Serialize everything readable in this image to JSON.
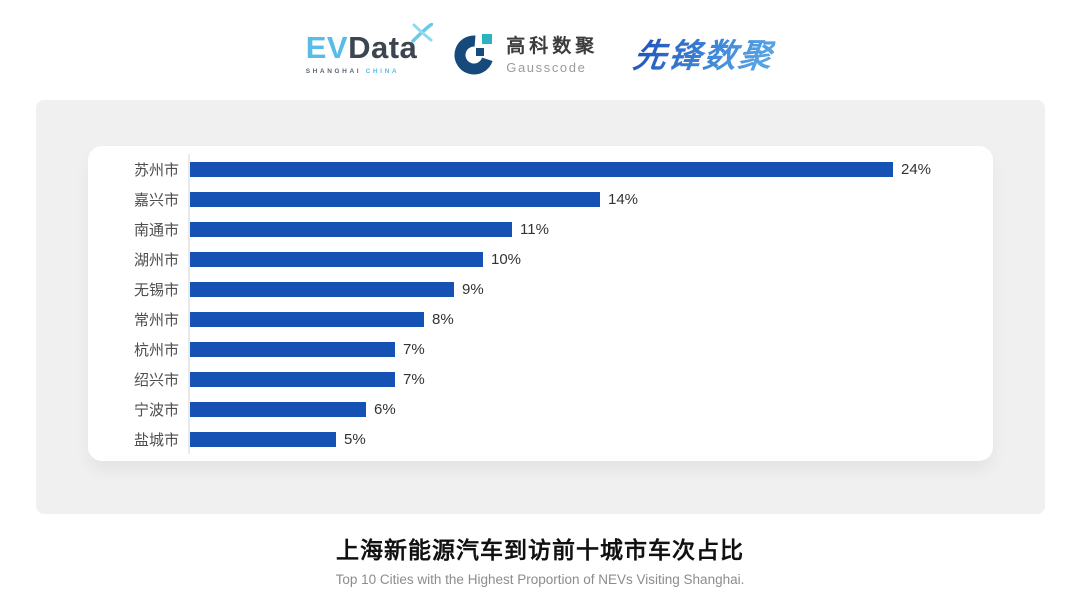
{
  "logos": {
    "evdata": {
      "ev": "EV",
      "data": "Data",
      "sub_shanghai": "SHANGHAI",
      "sub_china": "CHINA"
    },
    "gausscode": {
      "cn": "高科数聚",
      "en": "Gausscode"
    },
    "pioneer": {
      "text": "先锋数聚"
    }
  },
  "chart_data": {
    "type": "bar",
    "orientation": "horizontal",
    "categories": [
      "苏州市",
      "嘉兴市",
      "南通市",
      "湖州市",
      "无锡市",
      "常州市",
      "杭州市",
      "绍兴市",
      "宁波市",
      "盐城市"
    ],
    "values": [
      24,
      14,
      11,
      10,
      9,
      8,
      7,
      7,
      6,
      5
    ],
    "value_suffix": "%",
    "xlim": [
      0,
      24
    ],
    "bar_color": "#1552b4",
    "grid": false,
    "legend": "none",
    "title": "上海新能源汽车到访前十城市车次占比",
    "subtitle": "Top 10 Cities with the Highest Proportion of  NEVs Visiting Shanghai."
  },
  "colors": {
    "panel_bg": "#f0f0f0",
    "card_bg": "#ffffff",
    "axis_line": "#e9e9e9",
    "label_text": "#4d4d4d",
    "value_text": "#333333",
    "evdata_blue": "#56bde8",
    "evdata_dark": "#3d4550",
    "gauss_navy": "#174a7c",
    "gauss_teal": "#2ab3c0",
    "pioneer_blue": "#2e77cc"
  }
}
